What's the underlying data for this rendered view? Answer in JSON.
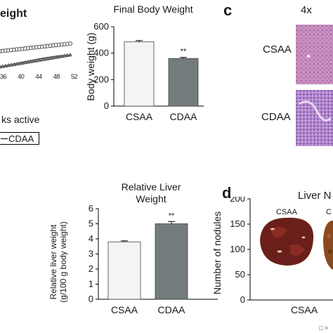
{
  "panel_top_left": {
    "title_fragment": "eight",
    "xlabel_fragment": "ks active",
    "tick_labels": [
      "36",
      "40",
      "44",
      "48",
      "52"
    ],
    "legend_label": "CDAA"
  },
  "panel_c": {
    "letter": "c",
    "magnification": "4x",
    "row_labels": [
      "CSAA",
      "CDAA"
    ]
  },
  "panel_d": {
    "letter": "d",
    "title_fragment": "Liver N",
    "ylabel": "Number of nodules",
    "xlabel": "CSAA",
    "photo_labels": [
      "CSAA",
      "C"
    ],
    "yticks": [
      "0",
      "50",
      "100",
      "150",
      "200"
    ],
    "legend_fragment": "□ >"
  },
  "chart_data": [
    {
      "type": "bar",
      "title": "Final Body Weight",
      "ylabel": "Body weight (g)",
      "categories": [
        "CSAA",
        "CDAA"
      ],
      "values": [
        485,
        360
      ],
      "errors": [
        10,
        8
      ],
      "significance": [
        "",
        "**"
      ],
      "ylim": [
        0,
        600
      ],
      "yticks": [
        "0",
        "200",
        "400",
        "600"
      ],
      "colors": [
        "#f4f4f4",
        "#737b7d"
      ]
    },
    {
      "type": "bar",
      "title_lines": [
        "Relative Liver",
        "Weight"
      ],
      "ylabel_lines": [
        "Relative liver weight",
        "(g/100 g body weight)"
      ],
      "categories": [
        "CSAA",
        "CDAA"
      ],
      "values": [
        3.8,
        5.0
      ],
      "errors": [
        0.07,
        0.15
      ],
      "significance": [
        "",
        "**"
      ],
      "ylim": [
        0,
        6
      ],
      "yticks": [
        "0",
        "1",
        "2",
        "3",
        "4",
        "5",
        "6"
      ],
      "colors": [
        "#f4f4f4",
        "#737b7d"
      ]
    }
  ]
}
